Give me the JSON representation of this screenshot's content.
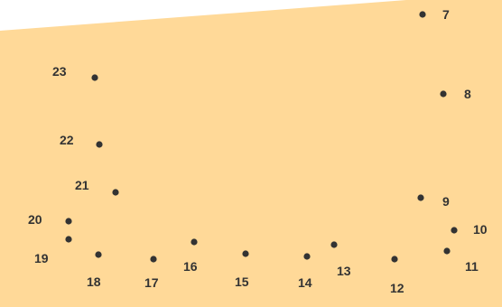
{
  "puzzle": {
    "paper_color": "#ffd998",
    "dot_color": "#333333",
    "label_color": "#333333",
    "dots": [
      {
        "number": "7"
      },
      {
        "number": "8"
      },
      {
        "number": "9"
      },
      {
        "number": "10"
      },
      {
        "number": "11"
      },
      {
        "number": "12"
      },
      {
        "number": "13"
      },
      {
        "number": "14"
      },
      {
        "number": "15"
      },
      {
        "number": "16"
      },
      {
        "number": "17"
      },
      {
        "number": "18"
      },
      {
        "number": "19"
      },
      {
        "number": "20"
      },
      {
        "number": "21"
      },
      {
        "number": "22"
      },
      {
        "number": "23"
      }
    ]
  }
}
